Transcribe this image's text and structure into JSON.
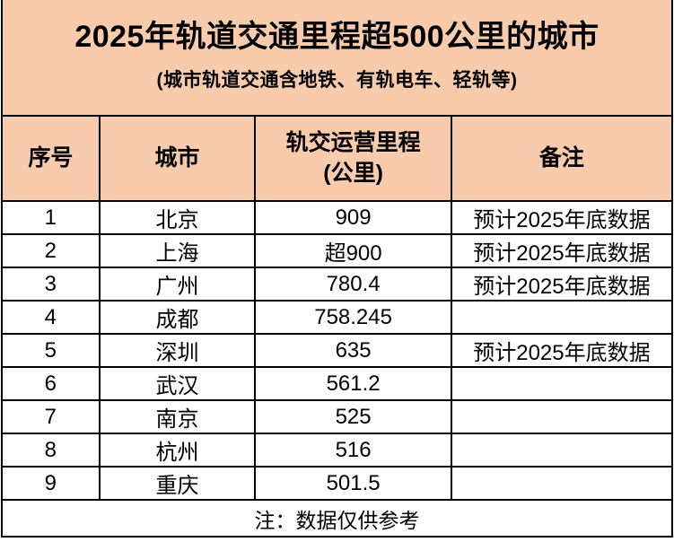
{
  "colors": {
    "accent_bg": "#F8CBAD",
    "border": "#000000",
    "body_bg": "#FFFFFF",
    "text": "#000000"
  },
  "header": {
    "title": "2025年轨道交通里程超500公里的城市",
    "subtitle": "(城市轨道交通含地铁、有轨电车、轻轨等)"
  },
  "table": {
    "headers": {
      "index": "序号",
      "city": "城市",
      "mileage_line1": "轨交运营里程",
      "mileage_line2": "(公里)",
      "note": "备注"
    },
    "footnote": "注：数据仅供参考"
  },
  "chart_data": {
    "type": "table",
    "title": "2025年轨道交通里程超500公里的城市",
    "subtitle": "(城市轨道交通含地铁、有轨电车、轻轨等)",
    "columns": [
      "序号",
      "城市",
      "轨交运营里程(公里)",
      "备注"
    ],
    "rows": [
      [
        1,
        "北京",
        "909",
        "预计2025年底数据"
      ],
      [
        2,
        "上海",
        "超900",
        "预计2025年底数据"
      ],
      [
        3,
        "广州",
        "780.4",
        "预计2025年底数据"
      ],
      [
        4,
        "成都",
        "758.245",
        ""
      ],
      [
        5,
        "深圳",
        "635",
        "预计2025年底数据"
      ],
      [
        6,
        "武汉",
        "561.2",
        ""
      ],
      [
        7,
        "南京",
        "525",
        ""
      ],
      [
        8,
        "杭州",
        "516",
        ""
      ],
      [
        9,
        "重庆",
        "501.5",
        ""
      ]
    ],
    "footnote": "注：数据仅供参考"
  }
}
